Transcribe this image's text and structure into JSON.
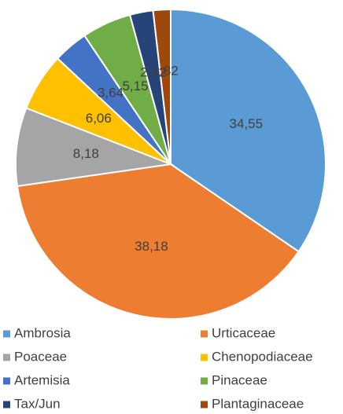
{
  "chart_data": {
    "type": "pie",
    "categories": [
      "Ambrosia",
      "Urticaceae",
      "Poaceae",
      "Chenopodiaceae",
      "Artemisia",
      "Pinaceae",
      "Tax/Jun",
      "Plantaginaceae"
    ],
    "values": [
      34.55,
      38.18,
      8.18,
      6.06,
      3.64,
      5.15,
      2.42,
      1.82
    ],
    "value_labels": [
      "34,55",
      "38,18",
      "8,18",
      "6,06",
      "3,64",
      "5,15",
      "2,42",
      "1,82"
    ],
    "colors": [
      "#5b9bd5",
      "#ed7d31",
      "#a5a5a5",
      "#ffc000",
      "#4472c4",
      "#70ad47",
      "#264478",
      "#9e480e"
    ],
    "legend": "bottom"
  }
}
